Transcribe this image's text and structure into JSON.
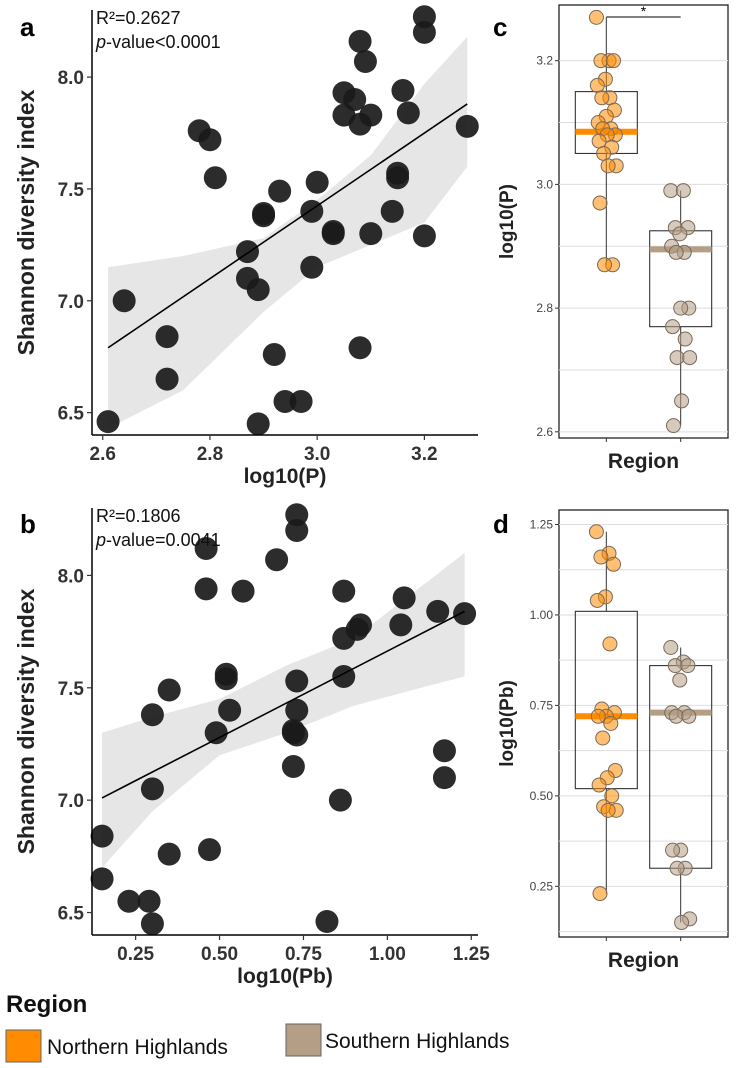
{
  "chart_data": [
    {
      "panel": "a",
      "type": "scatter",
      "xlabel": "log10(P)",
      "ylabel": "Shannon diversity index",
      "xlim": [
        2.58,
        3.3
      ],
      "ylim": [
        6.4,
        8.3
      ],
      "xticks": [
        "2.6",
        "2.8",
        "3.0",
        "3.2"
      ],
      "xtick_values": [
        2.6,
        2.8,
        3.0,
        3.2
      ],
      "yticks": [
        "6.5",
        "7.0",
        "7.5",
        "8.0"
      ],
      "ytick_values": [
        6.5,
        7.0,
        7.5,
        8.0
      ],
      "annotation_r2": "R²=0.2627",
      "annotation_p_italic": "p",
      "annotation_p_rest": "-value<0.0001",
      "fit_line": {
        "x": [
          2.61,
          3.28
        ],
        "y": [
          6.79,
          7.88
        ]
      },
      "confidence_band": {
        "x": [
          2.61,
          2.75,
          2.9,
          3.0,
          3.1,
          3.2,
          3.28
        ],
        "upper": [
          7.15,
          7.2,
          7.28,
          7.45,
          7.65,
          7.97,
          8.18
        ],
        "lower": [
          6.43,
          6.6,
          6.95,
          7.15,
          7.25,
          7.35,
          7.6
        ]
      },
      "points": {
        "x": [
          2.61,
          2.64,
          2.72,
          2.72,
          2.78,
          2.8,
          2.81,
          2.87,
          2.87,
          2.89,
          2.89,
          2.9,
          2.9,
          2.92,
          2.93,
          2.94,
          2.97,
          2.99,
          2.99,
          3.0,
          3.03,
          3.03,
          3.05,
          3.05,
          3.07,
          3.08,
          3.08,
          3.08,
          3.09,
          3.1,
          3.1,
          3.14,
          3.15,
          3.15,
          3.16,
          3.17,
          3.2,
          3.2,
          3.2,
          3.28
        ],
        "y": [
          6.46,
          7.0,
          6.84,
          6.65,
          7.76,
          7.72,
          7.55,
          7.22,
          7.1,
          7.05,
          6.45,
          7.38,
          7.39,
          6.76,
          7.49,
          6.55,
          6.55,
          7.15,
          7.4,
          7.53,
          7.3,
          7.31,
          7.83,
          7.93,
          7.9,
          7.79,
          6.79,
          8.16,
          8.07,
          7.3,
          7.83,
          7.4,
          7.55,
          7.57,
          7.94,
          7.84,
          8.27,
          8.2,
          7.29,
          7.78
        ]
      },
      "point_color": "#1a1a1a"
    },
    {
      "panel": "b",
      "type": "scatter",
      "xlabel": "log10(Pb)",
      "ylabel": "Shannon diversity index",
      "xlim": [
        0.12,
        1.27
      ],
      "ylim": [
        6.4,
        8.3
      ],
      "xticks": [
        "0.25",
        "0.50",
        "0.75",
        "1.00",
        "1.25"
      ],
      "xtick_values": [
        0.25,
        0.5,
        0.75,
        1.0,
        1.25
      ],
      "yticks": [
        "6.5",
        "7.0",
        "7.5",
        "8.0"
      ],
      "ytick_values": [
        6.5,
        7.0,
        7.5,
        8.0
      ],
      "annotation_r2": "R²=0.1806",
      "annotation_p_italic": "p",
      "annotation_p_rest": "-value=0.0041",
      "fit_line": {
        "x": [
          0.15,
          1.23
        ],
        "y": [
          7.01,
          7.84
        ]
      },
      "confidence_band": {
        "x": [
          0.15,
          0.3,
          0.5,
          0.7,
          0.9,
          1.1,
          1.23
        ],
        "upper": [
          7.3,
          7.37,
          7.45,
          7.6,
          7.72,
          7.95,
          8.1
        ],
        "lower": [
          6.7,
          6.95,
          7.2,
          7.3,
          7.42,
          7.5,
          7.55
        ]
      },
      "points": {
        "x": [
          0.15,
          0.15,
          0.23,
          0.29,
          0.3,
          0.3,
          0.3,
          0.35,
          0.35,
          0.46,
          0.46,
          0.47,
          0.49,
          0.52,
          0.52,
          0.53,
          0.57,
          0.67,
          0.72,
          0.72,
          0.72,
          0.73,
          0.73,
          0.73,
          0.73,
          0.73,
          0.82,
          0.86,
          0.87,
          0.87,
          0.87,
          0.91,
          0.92,
          1.04,
          1.05,
          1.15,
          1.17,
          1.17,
          1.23
        ],
        "y": [
          6.84,
          6.65,
          6.55,
          6.55,
          6.45,
          7.05,
          7.38,
          6.76,
          7.49,
          8.12,
          7.94,
          6.78,
          7.3,
          7.54,
          7.56,
          7.4,
          7.93,
          8.07,
          7.15,
          7.3,
          7.31,
          7.4,
          7.53,
          8.27,
          8.2,
          7.29,
          6.46,
          7.0,
          7.55,
          7.72,
          7.93,
          7.76,
          7.78,
          7.78,
          7.9,
          7.84,
          7.22,
          7.1,
          7.83
        ]
      },
      "point_color": "#1a1a1a"
    },
    {
      "panel": "c",
      "type": "box",
      "xlabel": "Region",
      "ylabel": "log10(P)",
      "ylim": [
        2.59,
        3.29
      ],
      "yticks": [
        "2.6",
        "2.8",
        "3.0",
        "3.2"
      ],
      "ytick_values": [
        2.6,
        2.8,
        3.0,
        3.2
      ],
      "significance": "*",
      "groups": [
        {
          "name": "Northern Highlands",
          "color": "#ff8c00",
          "q1": 3.05,
          "median": 3.085,
          "q3": 3.15,
          "whisker_low": 2.87,
          "whisker_high": 3.27,
          "points": [
            3.27,
            3.2,
            3.2,
            3.2,
            3.17,
            3.16,
            3.14,
            3.14,
            3.12,
            3.11,
            3.1,
            3.09,
            3.09,
            3.08,
            3.08,
            3.07,
            3.06,
            3.05,
            3.03,
            3.03,
            2.97,
            2.87,
            2.87
          ]
        },
        {
          "name": "Southern Highlands",
          "color": "#b49e86",
          "q1": 2.77,
          "median": 2.895,
          "q3": 2.925,
          "whisker_low": 2.61,
          "whisker_high": 2.99,
          "points": [
            2.99,
            2.99,
            2.93,
            2.93,
            2.92,
            2.9,
            2.89,
            2.89,
            2.8,
            2.8,
            2.77,
            2.75,
            2.72,
            2.72,
            2.65,
            2.61
          ]
        }
      ]
    },
    {
      "panel": "d",
      "type": "box",
      "xlabel": "Region",
      "ylabel": "log10(Pb)",
      "ylim": [
        0.11,
        1.29
      ],
      "yticks": [
        "0.25",
        "0.50",
        "0.75",
        "1.00",
        "1.25"
      ],
      "ytick_values": [
        0.25,
        0.5,
        0.75,
        1.0,
        1.25
      ],
      "groups": [
        {
          "name": "Northern Highlands",
          "color": "#ff8c00",
          "q1": 0.52,
          "median": 0.72,
          "q3": 1.01,
          "whisker_low": 0.23,
          "whisker_high": 1.23,
          "points": [
            1.23,
            1.17,
            1.16,
            1.14,
            1.05,
            1.04,
            0.92,
            0.74,
            0.73,
            0.72,
            0.72,
            0.7,
            0.66,
            0.57,
            0.55,
            0.53,
            0.5,
            0.47,
            0.46,
            0.46,
            0.23
          ]
        },
        {
          "name": "Southern Highlands",
          "color": "#b49e86",
          "q1": 0.3,
          "median": 0.73,
          "q3": 0.86,
          "whisker_low": 0.15,
          "whisker_high": 0.91,
          "points": [
            0.91,
            0.87,
            0.86,
            0.86,
            0.82,
            0.73,
            0.73,
            0.72,
            0.72,
            0.35,
            0.35,
            0.3,
            0.3,
            0.16,
            0.15
          ]
        }
      ]
    }
  ],
  "legend": {
    "title": "Region",
    "items": [
      {
        "label": "Northern Highlands",
        "color": "#ff8c00"
      },
      {
        "label": "Southern Highlands",
        "color": "#b49e86"
      }
    ]
  }
}
